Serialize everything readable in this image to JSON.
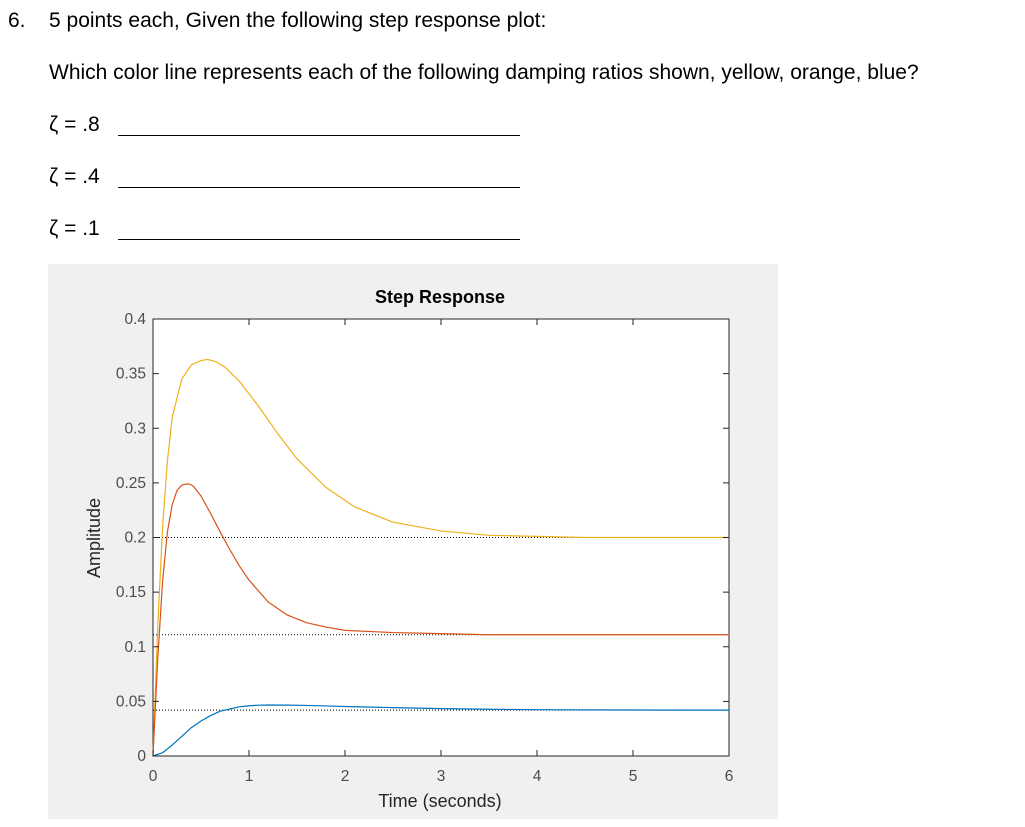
{
  "question": {
    "number": "6.",
    "text": "5 points each, Given the following step response plot:",
    "subtext": "Which color line represents each of the following damping ratios shown, yellow, orange, blue?",
    "answers": [
      {
        "label": "ζ = .8",
        "value": ""
      },
      {
        "label": "ζ = .4",
        "value": ""
      },
      {
        "label": "ζ = .1",
        "value": ""
      }
    ]
  },
  "chart_data": {
    "type": "line",
    "title": "Step Response",
    "xlabel": "Time (seconds)",
    "ylabel": "Amplitude",
    "xlim": [
      0,
      6
    ],
    "ylim": [
      0,
      0.4
    ],
    "xticks": [
      0,
      1,
      2,
      3,
      4,
      5,
      6
    ],
    "xtick_labels": [
      "0",
      "1",
      "2",
      "3",
      "4",
      "5",
      "6"
    ],
    "yticks": [
      0,
      0.05,
      0.1,
      0.15,
      0.2,
      0.25,
      0.3,
      0.35,
      0.4
    ],
    "ytick_labels": [
      "0",
      "0.05",
      "0.1",
      "0.15",
      "0.2",
      "0.25",
      "0.3",
      "0.35",
      "0.4"
    ],
    "grid": false,
    "series": [
      {
        "color": "#EDB120",
        "steady_state": 0.2,
        "x": [
          0,
          0.05,
          0.1,
          0.15,
          0.2,
          0.3,
          0.4,
          0.5,
          0.57,
          0.65,
          0.75,
          0.9,
          1.1,
          1.3,
          1.5,
          1.8,
          2.1,
          2.5,
          3.0,
          3.5,
          4.0,
          4.5,
          5.0,
          6.0
        ],
        "y": [
          0,
          0.12,
          0.21,
          0.27,
          0.31,
          0.345,
          0.358,
          0.362,
          0.363,
          0.361,
          0.356,
          0.343,
          0.32,
          0.295,
          0.272,
          0.246,
          0.228,
          0.214,
          0.206,
          0.202,
          0.201,
          0.2,
          0.2,
          0.2
        ]
      },
      {
        "color": "#D95319",
        "steady_state": 0.111,
        "x": [
          0,
          0.05,
          0.1,
          0.15,
          0.2,
          0.25,
          0.3,
          0.35,
          0.38,
          0.42,
          0.5,
          0.6,
          0.7,
          0.8,
          0.9,
          1.0,
          1.2,
          1.4,
          1.6,
          1.8,
          2.0,
          2.5,
          3.0,
          3.5,
          4.0,
          5.0,
          6.0
        ],
        "y": [
          0,
          0.09,
          0.16,
          0.205,
          0.23,
          0.243,
          0.248,
          0.249,
          0.249,
          0.247,
          0.238,
          0.222,
          0.205,
          0.189,
          0.174,
          0.161,
          0.141,
          0.129,
          0.122,
          0.118,
          0.115,
          0.113,
          0.112,
          0.111,
          0.111,
          0.111,
          0.111
        ]
      },
      {
        "color": "#0072BD",
        "steady_state": 0.042,
        "x": [
          0,
          0.1,
          0.2,
          0.3,
          0.4,
          0.5,
          0.6,
          0.7,
          0.8,
          0.9,
          1.0,
          1.1,
          1.2,
          1.4,
          1.6,
          1.8,
          2.0,
          2.5,
          3.0,
          3.5,
          4.0,
          5.0,
          6.0
        ],
        "y": [
          0,
          0.003,
          0.01,
          0.018,
          0.026,
          0.032,
          0.037,
          0.041,
          0.043,
          0.045,
          0.046,
          0.0465,
          0.0467,
          0.0466,
          0.0463,
          0.0458,
          0.0453,
          0.0443,
          0.0434,
          0.0428,
          0.0424,
          0.0421,
          0.042
        ]
      }
    ]
  }
}
